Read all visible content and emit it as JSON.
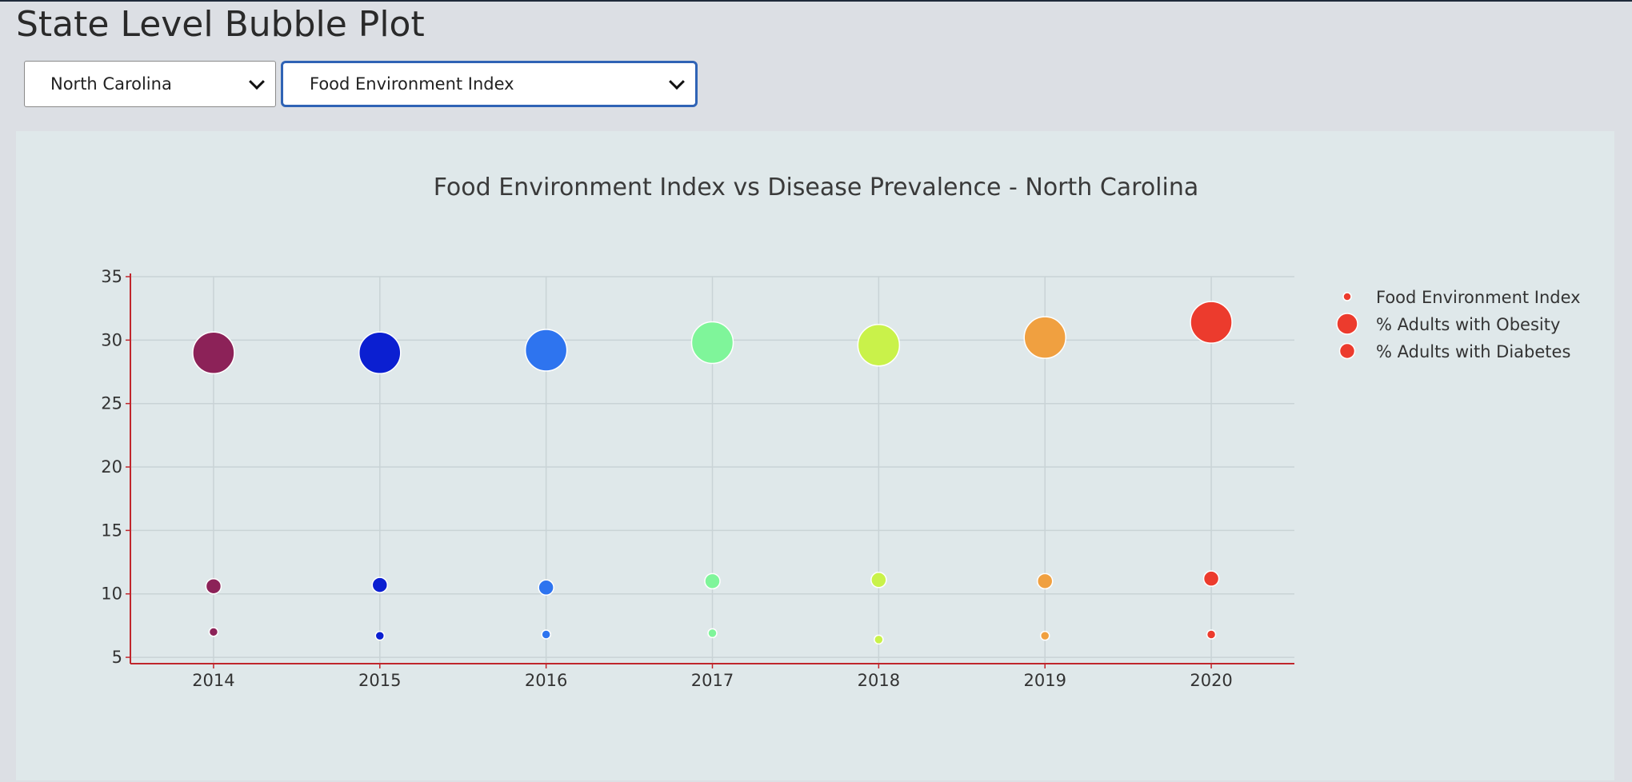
{
  "page": {
    "title": "State Level Bubble Plot"
  },
  "controls": {
    "state_select": {
      "value": "North Carolina"
    },
    "metric_select": {
      "value": "Food Environment Index"
    }
  },
  "chart_data": {
    "type": "scatter",
    "title": "Food Environment Index vs Disease Prevalence - North Carolina",
    "xlabel": "",
    "ylabel": "",
    "x": [
      2014,
      2015,
      2016,
      2017,
      2018,
      2019,
      2020
    ],
    "xlim": [
      2013.5,
      2020.5
    ],
    "ylim": [
      4.5,
      35
    ],
    "yticks": [
      5,
      10,
      15,
      20,
      25,
      30,
      35
    ],
    "grid": true,
    "legend_position": "right",
    "point_colors": [
      "#8c2258",
      "#0b1fd1",
      "#2e74ef",
      "#7ff59a",
      "#c9f24a",
      "#f0a040",
      "#ec3b2d"
    ],
    "series": [
      {
        "name": "Food Environment Index",
        "values": [
          7.0,
          6.7,
          6.8,
          6.9,
          6.4,
          6.7,
          6.8
        ],
        "bubble_size": "small"
      },
      {
        "name": "% Adults with Obesity",
        "values": [
          29.0,
          29.0,
          29.2,
          29.8,
          29.6,
          30.2,
          31.4
        ],
        "bubble_size": "large"
      },
      {
        "name": "% Adults with Diabetes",
        "values": [
          10.6,
          10.7,
          10.5,
          11.0,
          11.1,
          11.0,
          11.2
        ],
        "bubble_size": "medium"
      }
    ],
    "legend_color": "#ec3b2d"
  }
}
